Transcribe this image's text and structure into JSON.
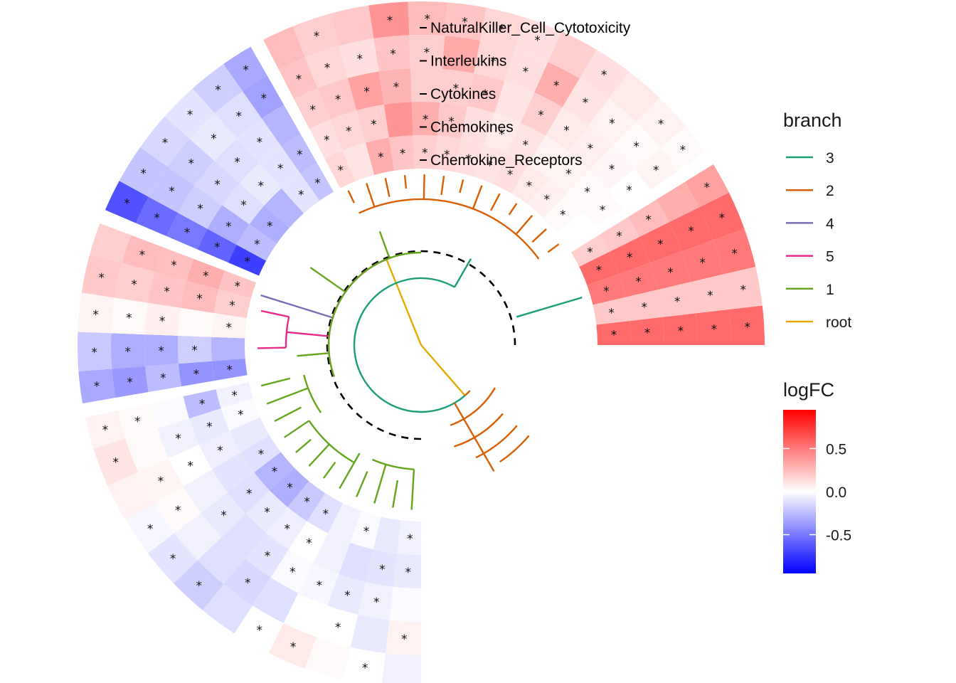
{
  "chart_data": {
    "type": "heatmap",
    "layout": "circular",
    "tracks": [
      "NaturalKiller_Cell_Cytotoxicity",
      "Interleukins",
      "Cytokines",
      "Chemokines",
      "Chemokine_Receptors"
    ],
    "legend_placement": "right",
    "branch_legend": {
      "title": "branch",
      "items": [
        {
          "label": "3",
          "color": "#1b9e77"
        },
        {
          "label": "2",
          "color": "#d95f02"
        },
        {
          "label": "4",
          "color": "#7570b3"
        },
        {
          "label": "5",
          "color": "#e7298a"
        },
        {
          "label": "1",
          "color": "#66a61e"
        },
        {
          "label": "root",
          "color": "#e6ab02"
        }
      ]
    },
    "color_legend": {
      "title": "logFC",
      "ticks": [
        "0.5",
        "0.0",
        "-0.5"
      ],
      "tick_values": [
        0.5,
        0.0,
        -0.5
      ],
      "range": [
        -0.95,
        0.95
      ],
      "colors": {
        "low": "#0000ff",
        "mid": "#ffffff",
        "high": "#ff0000"
      }
    },
    "significance_marker": "*",
    "cell_values": [
      [
        -0.05,
        0.0,
        0.02,
        0.08,
        0.0,
        -0.12,
        -0.18,
        -0.1,
        -0.03,
        0.05,
        0.1,
        0.05,
        -0.32,
        -0.2,
        0.04,
        0.2,
        0.18,
        -0.65,
        -0.22,
        -0.15,
        -0.1,
        -0.18,
        -0.32,
        0.25,
        0.18,
        0.2,
        0.4,
        0.25,
        0.22,
        0.15,
        0.12,
        0.18,
        0.12,
        0.08,
        0.05,
        0.02,
        0.35,
        0.55,
        0.5,
        0.2,
        0.55
      ],
      [
        0.05,
        -0.08,
        0.0,
        0.0,
        -0.12,
        -0.15,
        -0.12,
        -0.05,
        0.02,
        0.04,
        0.02,
        0.02,
        -0.38,
        -0.3,
        0.02,
        0.18,
        0.25,
        -0.55,
        -0.22,
        -0.18,
        -0.08,
        -0.12,
        -0.35,
        0.22,
        0.15,
        0.12,
        0.22,
        0.18,
        0.32,
        0.15,
        0.12,
        0.3,
        0.1,
        0.05,
        0.02,
        0.04,
        0.3,
        0.55,
        0.5,
        0.2,
        0.55
      ],
      [
        -0.02,
        -0.05,
        -0.08,
        -0.03,
        -0.02,
        -0.1,
        -0.12,
        -0.08,
        -0.05,
        0.0,
        -0.05,
        -0.02,
        -0.25,
        -0.3,
        0.06,
        0.22,
        0.24,
        -0.5,
        -0.18,
        -0.15,
        -0.12,
        -0.1,
        -0.28,
        0.18,
        0.2,
        0.35,
        0.28,
        0.18,
        0.18,
        0.2,
        0.1,
        0.18,
        0.08,
        0.06,
        0.03,
        0.0,
        0.25,
        0.55,
        0.5,
        0.2,
        0.55
      ],
      [
        -0.08,
        -0.1,
        -0.12,
        -0.05,
        0.0,
        -0.06,
        -0.08,
        -0.12,
        -0.1,
        -0.06,
        -0.08,
        -0.25,
        -0.4,
        -0.18,
        0.02,
        0.25,
        0.3,
        -0.58,
        -0.3,
        -0.12,
        -0.08,
        -0.1,
        -0.25,
        0.12,
        0.15,
        0.18,
        0.4,
        0.3,
        0.2,
        0.12,
        0.08,
        0.1,
        0.05,
        0.04,
        0.02,
        0.02,
        0.2,
        0.55,
        0.5,
        0.2,
        0.55
      ],
      [
        -0.05,
        -0.08,
        -0.02,
        -0.05,
        -0.12,
        -0.2,
        -0.3,
        -0.28,
        -0.12,
        -0.08,
        -0.02,
        -0.05,
        -0.4,
        -0.28,
        0.04,
        0.18,
        0.22,
        -0.72,
        -0.25,
        -0.3,
        -0.28,
        -0.1,
        -0.22,
        0.15,
        0.1,
        0.3,
        0.22,
        0.18,
        0.15,
        0.12,
        0.1,
        0.12,
        0.08,
        0.06,
        0.02,
        0.0,
        0.18,
        0.55,
        0.5,
        0.2,
        0.55
      ]
    ]
  }
}
